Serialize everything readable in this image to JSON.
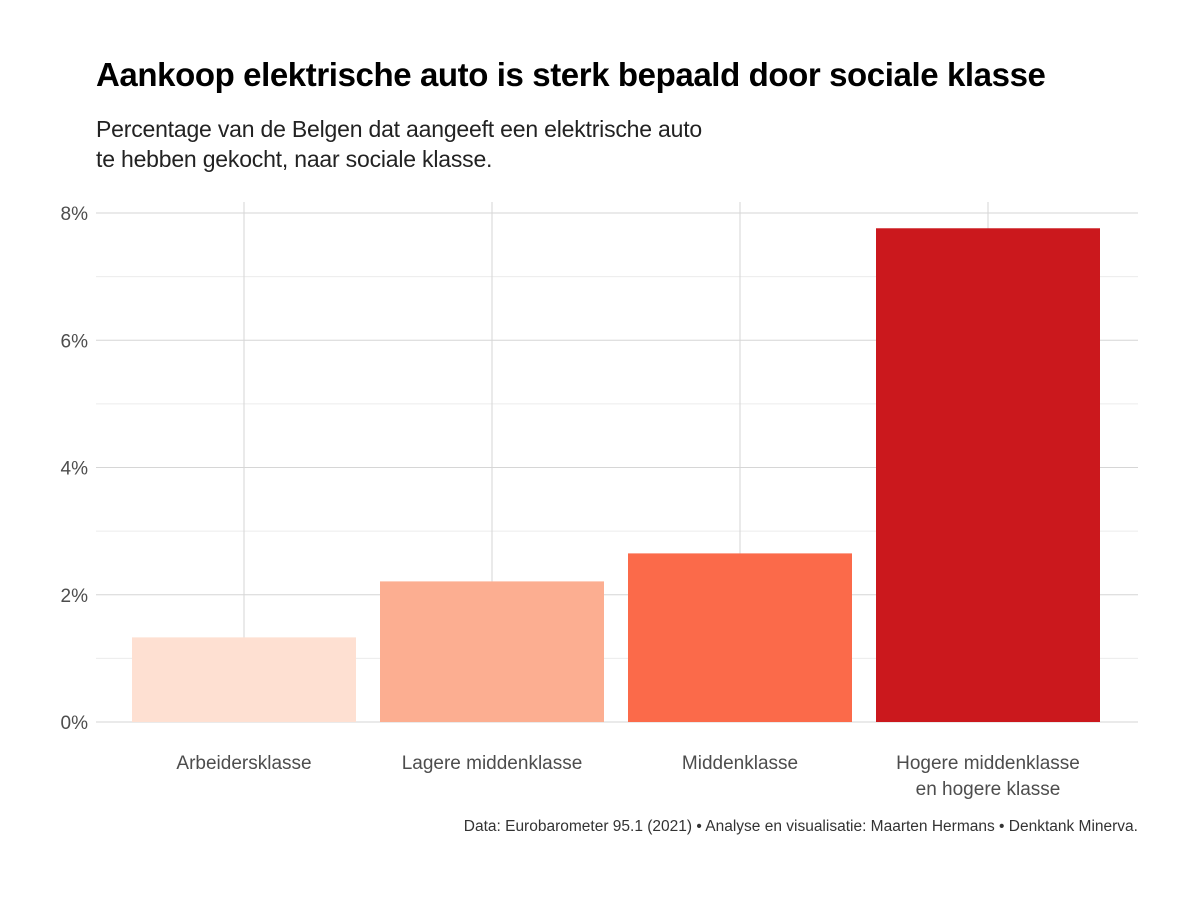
{
  "title": "Aankoop elektrische auto is sterk bepaald door sociale klasse",
  "subtitle_lines": [
    "Percentage van de Belgen dat aangeeft een elektrische auto",
    "te hebben gekocht, naar sociale klasse."
  ],
  "caption": "Data: Eurobarometer 95.1 (2021) • Analyse en visualisatie: Maarten Hermans • Denktank Minerva.",
  "chart_data": {
    "type": "bar",
    "categories": [
      [
        "Arbeidersklasse"
      ],
      [
        "Lagere middenklasse"
      ],
      [
        "Middenklasse"
      ],
      [
        "Hogere middenklasse",
        "en hogere klasse"
      ]
    ],
    "values": [
      1.33,
      2.21,
      2.65,
      7.76
    ],
    "colors": [
      "#fee0d2",
      "#fcae91",
      "#fb6a4a",
      "#cb181d"
    ],
    "yticks": [
      0,
      2,
      4,
      6,
      8
    ],
    "ytick_labels": [
      "0%",
      "2%",
      "4%",
      "6%",
      "8%"
    ],
    "ylim": [
      0,
      8.17
    ],
    "grid": true,
    "legend": "none"
  }
}
